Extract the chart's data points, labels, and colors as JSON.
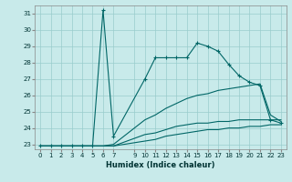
{
  "xlabel": "Humidex (Indice chaleur)",
  "bg_color": "#c8eaea",
  "grid_color": "#99cccc",
  "line_color": "#006666",
  "ylim": [
    22.7,
    31.5
  ],
  "xlim": [
    -0.5,
    23.5
  ],
  "yticks": [
    23,
    24,
    25,
    26,
    27,
    28,
    29,
    30,
    31
  ],
  "xticks": [
    0,
    1,
    2,
    3,
    4,
    5,
    6,
    7,
    9,
    10,
    11,
    12,
    13,
    14,
    15,
    16,
    17,
    18,
    19,
    20,
    21,
    22,
    23
  ],
  "series": [
    {
      "x": [
        0,
        1,
        2,
        3,
        4,
        5,
        6,
        7,
        10,
        11,
        12,
        13,
        14,
        15,
        16,
        17,
        18,
        19,
        20,
        21,
        22,
        23
      ],
      "y": [
        22.9,
        22.9,
        22.9,
        22.9,
        22.9,
        22.9,
        31.2,
        23.5,
        27.0,
        28.3,
        28.3,
        28.3,
        28.3,
        29.2,
        29.0,
        28.7,
        27.9,
        27.2,
        26.8,
        26.6,
        24.5,
        24.3
      ],
      "marker": true
    },
    {
      "x": [
        0,
        1,
        2,
        3,
        4,
        5,
        6,
        7,
        10,
        11,
        12,
        13,
        14,
        15,
        16,
        17,
        18,
        19,
        20,
        21,
        22,
        23
      ],
      "y": [
        22.9,
        22.9,
        22.9,
        22.9,
        22.9,
        22.9,
        22.9,
        23.0,
        24.5,
        24.8,
        25.2,
        25.5,
        25.8,
        26.0,
        26.1,
        26.3,
        26.4,
        26.5,
        26.6,
        26.7,
        24.8,
        24.4
      ],
      "marker": false
    },
    {
      "x": [
        0,
        1,
        2,
        3,
        4,
        5,
        6,
        7,
        10,
        11,
        12,
        13,
        14,
        15,
        16,
        17,
        18,
        19,
        20,
        21,
        22,
        23
      ],
      "y": [
        22.9,
        22.9,
        22.9,
        22.9,
        22.9,
        22.9,
        22.9,
        22.9,
        23.6,
        23.7,
        23.9,
        24.1,
        24.2,
        24.3,
        24.3,
        24.4,
        24.4,
        24.5,
        24.5,
        24.5,
        24.5,
        24.5
      ],
      "marker": false
    },
    {
      "x": [
        0,
        1,
        2,
        3,
        4,
        5,
        6,
        7,
        10,
        11,
        12,
        13,
        14,
        15,
        16,
        17,
        18,
        19,
        20,
        21,
        22,
        23
      ],
      "y": [
        22.9,
        22.9,
        22.9,
        22.9,
        22.9,
        22.9,
        22.9,
        22.9,
        23.2,
        23.3,
        23.5,
        23.6,
        23.7,
        23.8,
        23.9,
        23.9,
        24.0,
        24.0,
        24.1,
        24.1,
        24.2,
        24.2
      ],
      "marker": false
    }
  ]
}
